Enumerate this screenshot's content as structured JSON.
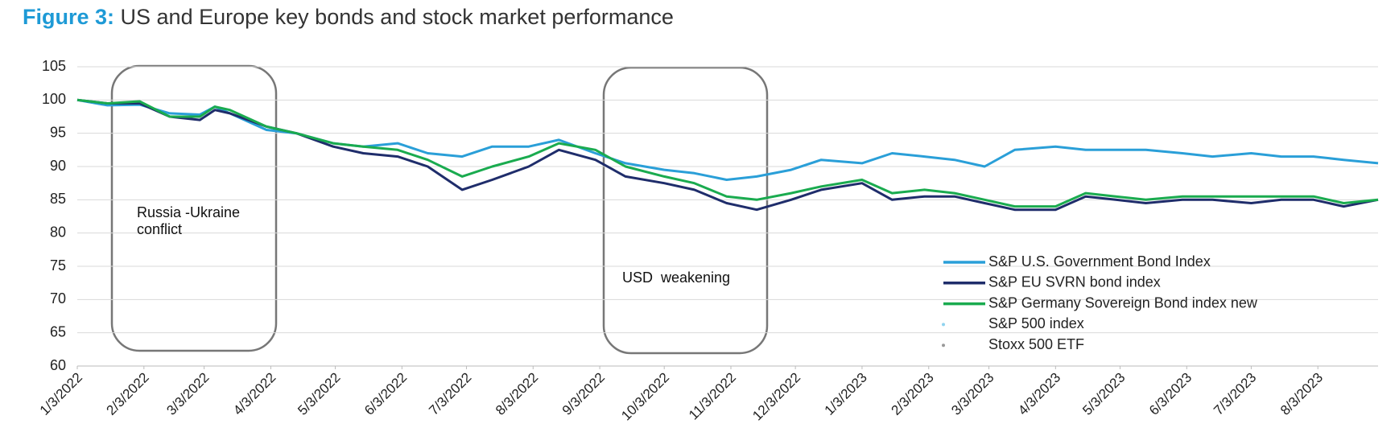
{
  "chart_data": {
    "type": "line",
    "figure_label": "Figure 3:",
    "title": "US and Europe key bonds and stock market performance",
    "annotations": [
      "Russia -Ukraine conflict",
      "USD  weakening"
    ],
    "x": [
      "1/3/2022",
      "1/17/2022",
      "2/1/2022",
      "2/15/2022",
      "3/1/2022",
      "3/8/2022",
      "3/15/2022",
      "4/1/2022",
      "4/15/2022",
      "5/2/2022",
      "5/16/2022",
      "6/1/2022",
      "6/15/2022",
      "7/1/2022",
      "7/15/2022",
      "8/1/2022",
      "8/15/2022",
      "9/1/2022",
      "9/15/2022",
      "10/3/2022",
      "10/17/2022",
      "11/1/2022",
      "11/15/2022",
      "12/1/2022",
      "12/15/2022",
      "1/3/2023",
      "1/17/2023",
      "2/1/2023",
      "2/15/2023",
      "3/1/2023",
      "3/15/2023",
      "4/3/2023",
      "4/17/2023",
      "5/1/2023",
      "5/15/2023",
      "6/1/2023",
      "6/15/2023",
      "7/3/2023",
      "7/17/2023",
      "8/1/2023",
      "8/15/2023",
      "8/31/2023"
    ],
    "series": [
      {
        "name": "S&P U.S. Government Bond Index",
        "color": "#2a9fd8",
        "values": [
          100,
          99.2,
          99.3,
          98,
          97.8,
          99,
          98,
          95.5,
          95,
          93.5,
          93,
          93.5,
          92,
          91.5,
          93,
          93,
          94,
          92,
          90.5,
          89.5,
          89,
          88,
          88.5,
          89.5,
          91,
          90.5,
          92,
          91.5,
          91,
          90,
          92.5,
          93,
          92.5,
          92.5,
          92.5,
          92,
          91.5,
          92,
          91.5,
          91.5,
          91,
          90.5
        ]
      },
      {
        "name": "S&P EU SVRN bond index",
        "color": "#1f2d6b",
        "values": [
          100,
          99.5,
          99.5,
          97.5,
          97,
          98.5,
          98,
          96,
          95,
          93,
          92,
          91.5,
          90,
          86.5,
          88,
          90,
          92.5,
          91,
          88.5,
          87.5,
          86.5,
          84.5,
          83.5,
          85,
          86.5,
          87.5,
          85,
          85.5,
          85.5,
          84.5,
          83.5,
          83.5,
          85.5,
          85,
          84.5,
          85,
          85,
          84.5,
          85,
          85,
          84,
          85
        ]
      },
      {
        "name": "S&P Germany Sovereign Bond index new",
        "color": "#1aab4f",
        "values": [
          100,
          99.5,
          99.8,
          97.5,
          97.5,
          99,
          98.5,
          96,
          95,
          93.5,
          93,
          92.5,
          91,
          88.5,
          90,
          91.5,
          93.5,
          92.5,
          90,
          88.5,
          87.5,
          85.5,
          85,
          86,
          87,
          88,
          86,
          86.5,
          86,
          85,
          84,
          84,
          86,
          85.5,
          85,
          85.5,
          85.5,
          85.5,
          85.5,
          85.5,
          84.5,
          85
        ]
      },
      {
        "name": "S&P 500 index",
        "color": "#8fd3ef",
        "values": [
          null,
          null,
          null,
          null,
          null,
          null,
          null,
          null,
          null,
          null,
          null,
          null,
          null,
          null,
          null,
          null,
          null,
          null,
          null,
          null,
          null,
          null,
          null,
          null,
          null,
          null,
          null,
          null,
          null,
          null,
          null,
          null,
          null,
          null,
          null,
          null,
          null,
          null,
          null,
          null,
          null,
          null
        ]
      },
      {
        "name": "Stoxx 500 ETF",
        "color": "#999999",
        "values": [
          null,
          null,
          null,
          null,
          null,
          null,
          null,
          null,
          null,
          null,
          null,
          null,
          null,
          null,
          null,
          null,
          null,
          null,
          null,
          null,
          null,
          null,
          null,
          null,
          null,
          null,
          null,
          null,
          null,
          null,
          null,
          null,
          null,
          null,
          null,
          null,
          null,
          null,
          null,
          null,
          null,
          null
        ]
      }
    ],
    "xlim": [
      "1/3/2022",
      "8/31/2023"
    ],
    "xticks": [
      "1/3/2022",
      "2/3/2022",
      "3/3/2022",
      "4/3/2022",
      "5/3/2022",
      "6/3/2022",
      "7/3/2022",
      "8/3/2022",
      "9/3/2022",
      "10/3/2022",
      "11/3/2022",
      "12/3/2022",
      "1/3/2023",
      "2/3/2023",
      "3/3/2023",
      "4/3/2023",
      "5/3/2023",
      "6/3/2023",
      "7/3/2023",
      "8/3/2023"
    ],
    "ylim": [
      60,
      105
    ],
    "yticks": [
      60,
      65,
      70,
      75,
      80,
      85,
      90,
      95,
      100,
      105
    ],
    "grid": true,
    "legend": "right"
  }
}
